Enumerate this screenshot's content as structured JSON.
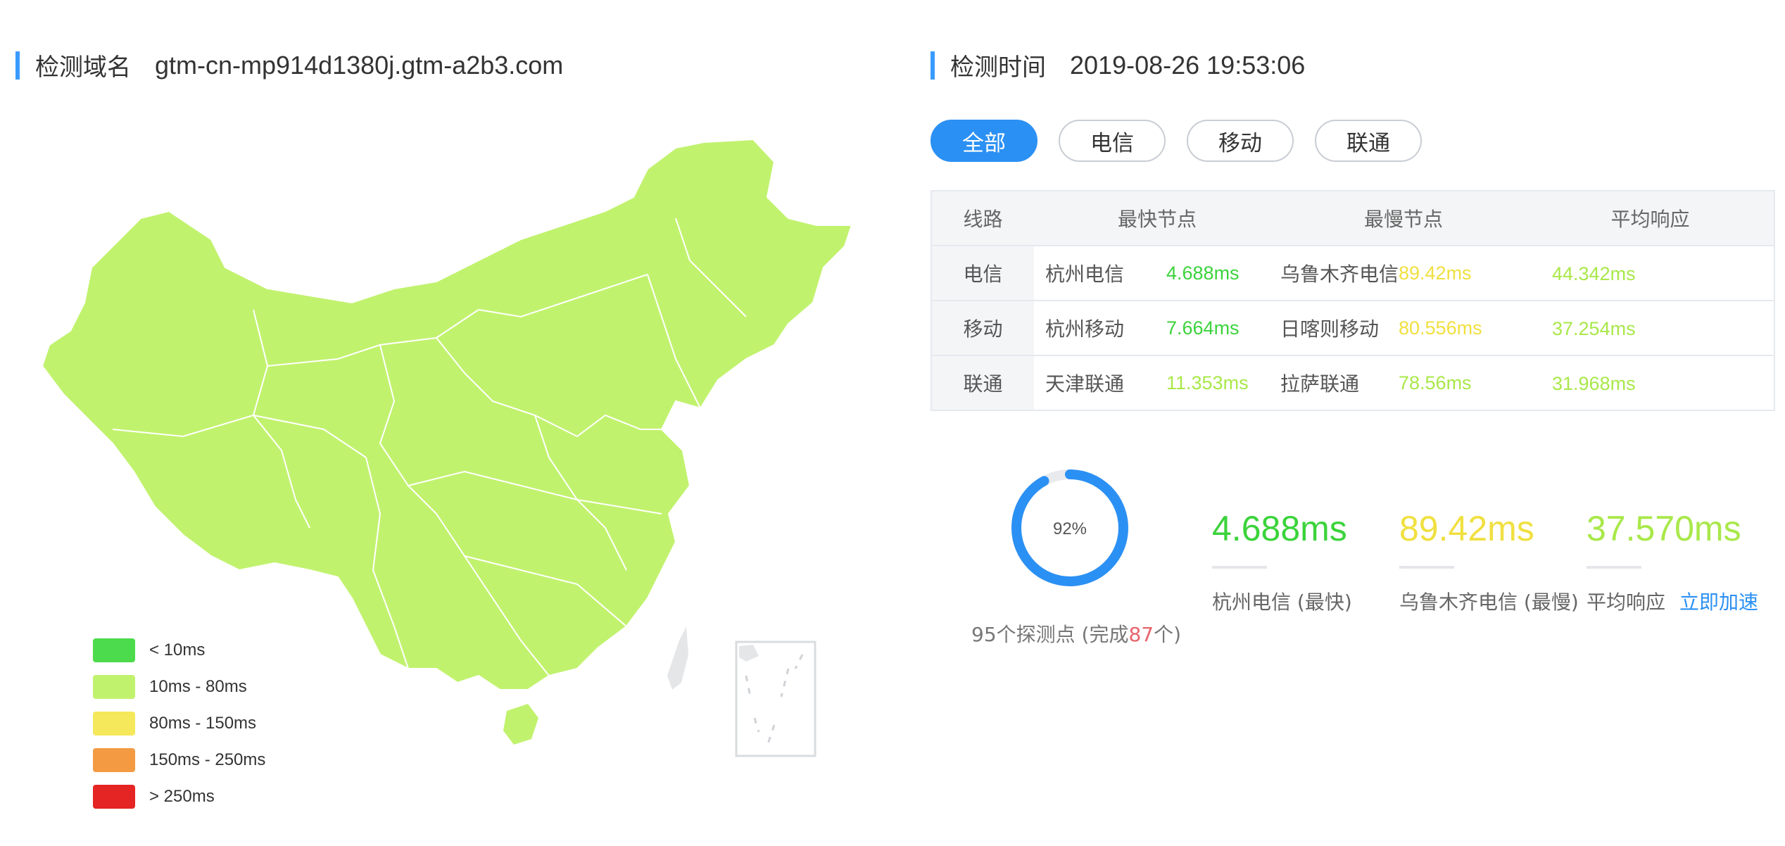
{
  "domain": {
    "label": "检测域名",
    "value": "gtm-cn-mp914d1380j.gtm-a2b3.com"
  },
  "check_time": {
    "label": "检测时间",
    "value": "2019-08-26 19:53:06"
  },
  "tabs": [
    {
      "label": "全部",
      "active": true
    },
    {
      "label": "电信",
      "active": false
    },
    {
      "label": "移动",
      "active": false
    },
    {
      "label": "联通",
      "active": false
    }
  ],
  "table": {
    "headers": [
      "线路",
      "最快节点",
      "最慢节点",
      "平均响应"
    ],
    "rows": [
      {
        "line": "电信",
        "fast_node": "杭州电信",
        "fast_ms": "4.688ms",
        "slow_node": "乌鲁木齐电信",
        "slow_ms": "89.42ms",
        "avg_ms": "44.342ms"
      },
      {
        "line": "移动",
        "fast_node": "杭州移动",
        "fast_ms": "7.664ms",
        "slow_node": "日喀则移动",
        "slow_ms": "80.556ms",
        "avg_ms": "37.254ms"
      },
      {
        "line": "联通",
        "fast_node": "天津联通",
        "fast_ms": "11.353ms",
        "slow_node": "拉萨联通",
        "slow_ms": "78.56ms",
        "avg_ms": "31.968ms"
      }
    ]
  },
  "summary": {
    "progress_text": "92%",
    "progress": 0.92,
    "probe_total": "95个探测点 (完成",
    "probe_done": "87",
    "probe_suffix": "个)",
    "fastest_value": "4.688ms",
    "fastest_caption": "杭州电信 (最快)",
    "slowest_value": "89.42ms",
    "slowest_caption": "乌鲁木齐电信 (最慢)",
    "avg_value": "37.570ms",
    "avg_caption": "平均响应",
    "speedup_link": "立即加速"
  },
  "legend": [
    {
      "label": "< 10ms",
      "color": "#4cdb4c"
    },
    {
      "label": "10ms - 80ms",
      "color": "#c1f26e"
    },
    {
      "label": "80ms - 150ms",
      "color": "#f5e85a"
    },
    {
      "label": "150ms - 250ms",
      "color": "#f49a42"
    },
    {
      "label": "> 250ms",
      "color": "#e52424"
    }
  ],
  "colors": {
    "accent": "#2b90f3",
    "fast": "#3bd33b",
    "mid": "#a9e84a",
    "slow": "#f0e040",
    "map_fill": "#c1f26e",
    "done_count": "#e8636b"
  }
}
